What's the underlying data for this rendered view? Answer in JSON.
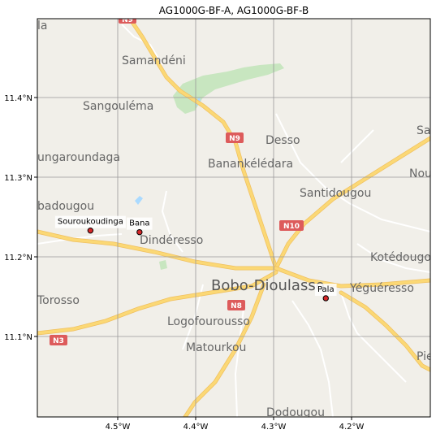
{
  "title": "AG1000G-BF-A, AG1000G-BF-B",
  "axes": {
    "x_ticks": [
      "4.5°W",
      "4.4°W",
      "4.3°W",
      "4.2°W"
    ],
    "y_ticks": [
      "11.4°N",
      "11.3°N",
      "11.2°N",
      "11.1°N"
    ]
  },
  "map": {
    "places": [
      {
        "name": "Samandéni",
        "size": "normal"
      },
      {
        "name": "Sangouléma",
        "size": "normal"
      },
      {
        "name": "Desso",
        "size": "normal"
      },
      {
        "name": "ungaroundaga",
        "size": "normal"
      },
      {
        "name": "Banankélédara",
        "size": "normal"
      },
      {
        "name": "Santidougou",
        "size": "normal"
      },
      {
        "name": "badougou",
        "size": "normal"
      },
      {
        "name": "Dindéresso",
        "size": "normal"
      },
      {
        "name": "Kotédougo",
        "size": "normal"
      },
      {
        "name": "Bobo-Dioulasso",
        "size": "big"
      },
      {
        "name": "Yéguéresso",
        "size": "normal"
      },
      {
        "name": "Torosso",
        "size": "normal"
      },
      {
        "name": "Logofourousso",
        "size": "normal"
      },
      {
        "name": "Matourkou",
        "size": "normal"
      },
      {
        "name": "Dodougou",
        "size": "normal"
      },
      {
        "name": "Sa",
        "size": "normal"
      },
      {
        "name": "Nou",
        "size": "normal"
      },
      {
        "name": "Pie",
        "size": "normal"
      },
      {
        "name": "la",
        "size": "normal"
      }
    ],
    "shields": [
      "N9",
      "N9",
      "N10",
      "N8",
      "N3"
    ],
    "colors": {
      "land": "#f1efe9",
      "road": "#fbd875",
      "road_edge": "#f0c060",
      "green": "#c8e6c0",
      "water": "#aadaff",
      "shield": "#dd5b5b"
    }
  },
  "sites": [
    {
      "name": "Souroukoudinga",
      "lon": -4.535,
      "lat": 11.235
    },
    {
      "name": "Bana",
      "lon": -4.472,
      "lat": 11.233
    },
    {
      "name": "Pala",
      "lon": -4.233,
      "lat": 11.15
    }
  ]
}
